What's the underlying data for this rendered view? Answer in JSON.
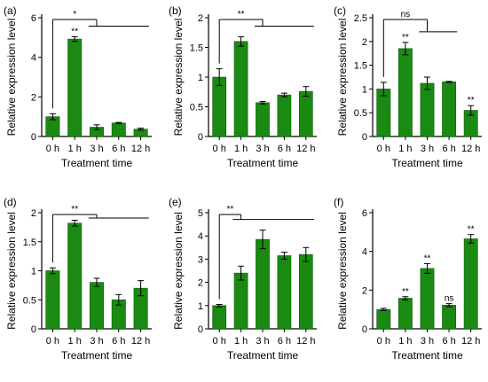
{
  "colors": {
    "bar": "#1a8a12",
    "bar_edge": "#0d5c08",
    "axis": "#000000"
  },
  "chart_data": [
    {
      "panel": "(a)",
      "type": "bar",
      "xlabel": "Treatment time",
      "ylabel": "Relative expression level",
      "categories": [
        "0 h",
        "1 h",
        "3 h",
        "6 h",
        "12 h"
      ],
      "values": [
        1.0,
        4.92,
        0.47,
        0.68,
        0.37
      ],
      "errors": [
        0.15,
        0.12,
        0.12,
        0.03,
        0.05
      ],
      "ylim": [
        0,
        6
      ],
      "yticks": [
        0,
        2,
        4,
        6
      ],
      "bar_annotations": [
        {
          "index": 1,
          "text": "**"
        }
      ],
      "brackets": [
        {
          "from": 0,
          "to_start": 2,
          "to_end": 4,
          "text": "*"
        }
      ]
    },
    {
      "panel": "(b)",
      "type": "bar",
      "xlabel": "Treatment time",
      "ylabel": "Relative expression level",
      "categories": [
        "0 h",
        "1 h",
        "3 h",
        "6 h",
        "12 h"
      ],
      "values": [
        1.0,
        1.6,
        0.57,
        0.7,
        0.76
      ],
      "errors": [
        0.14,
        0.08,
        0.02,
        0.03,
        0.08
      ],
      "ylim": [
        0,
        2.0
      ],
      "yticks": [
        0.0,
        0.5,
        1.0,
        1.5,
        2.0
      ],
      "bar_annotations": [],
      "brackets": [
        {
          "from": 0,
          "to_start": 2,
          "to_end": 4,
          "text": "**"
        }
      ]
    },
    {
      "panel": "(c)",
      "type": "bar",
      "xlabel": "Treatment time",
      "ylabel": "Relative expression level",
      "categories": [
        "0 h",
        "1 h",
        "3 h",
        "6 h",
        "12 h"
      ],
      "values": [
        1.0,
        1.85,
        1.12,
        1.15,
        0.55
      ],
      "errors": [
        0.14,
        0.13,
        0.13,
        0.01,
        0.1
      ],
      "ylim": [
        0,
        2.5
      ],
      "yticks": [
        0.0,
        0.5,
        1.0,
        1.5,
        2.0,
        2.5
      ],
      "bar_annotations": [
        {
          "index": 1,
          "text": "**"
        },
        {
          "index": 4,
          "text": "**"
        }
      ],
      "brackets": [
        {
          "from": 0,
          "to_start": 2,
          "to_end": 3,
          "text": "ns"
        }
      ]
    },
    {
      "panel": "(d)",
      "type": "bar",
      "xlabel": "Treatment time",
      "ylabel": "Relative expression level",
      "categories": [
        "0 h",
        "1 h",
        "3 h",
        "6 h",
        "12 h"
      ],
      "values": [
        1.0,
        1.82,
        0.8,
        0.5,
        0.7
      ],
      "errors": [
        0.05,
        0.05,
        0.07,
        0.09,
        0.13
      ],
      "ylim": [
        0,
        2.0
      ],
      "yticks": [
        0.0,
        0.5,
        1.0,
        1.5,
        2.0
      ],
      "bar_annotations": [],
      "brackets": [
        {
          "from": 0,
          "to_start": 2,
          "to_end": 4,
          "text": "**"
        }
      ]
    },
    {
      "panel": "(e)",
      "type": "bar",
      "xlabel": "Treatment time",
      "ylabel": "Relative expression level",
      "categories": [
        "0 h",
        "1 h",
        "3 h",
        "6 h",
        "12 h"
      ],
      "values": [
        1.0,
        2.4,
        3.85,
        3.15,
        3.2
      ],
      "errors": [
        0.05,
        0.3,
        0.4,
        0.15,
        0.3
      ],
      "ylim": [
        0,
        5
      ],
      "yticks": [
        0,
        1,
        2,
        3,
        4,
        5
      ],
      "bar_annotations": [],
      "brackets": [
        {
          "from": 0,
          "to_start": 1,
          "to_end": 4,
          "text": "**"
        }
      ]
    },
    {
      "panel": "(f)",
      "type": "bar",
      "xlabel": "Treatment time",
      "ylabel": "Relative expression level",
      "categories": [
        "0 h",
        "1 h",
        "3 h",
        "6 h",
        "12 h"
      ],
      "values": [
        1.0,
        1.58,
        3.12,
        1.22,
        4.65
      ],
      "errors": [
        0.06,
        0.08,
        0.25,
        0.08,
        0.22
      ],
      "ylim": [
        0,
        6
      ],
      "yticks": [
        0,
        2,
        4,
        6
      ],
      "bar_annotations": [
        {
          "index": 1,
          "text": "**"
        },
        {
          "index": 2,
          "text": "**"
        },
        {
          "index": 3,
          "text": "ns"
        },
        {
          "index": 4,
          "text": "**"
        }
      ],
      "brackets": []
    }
  ]
}
